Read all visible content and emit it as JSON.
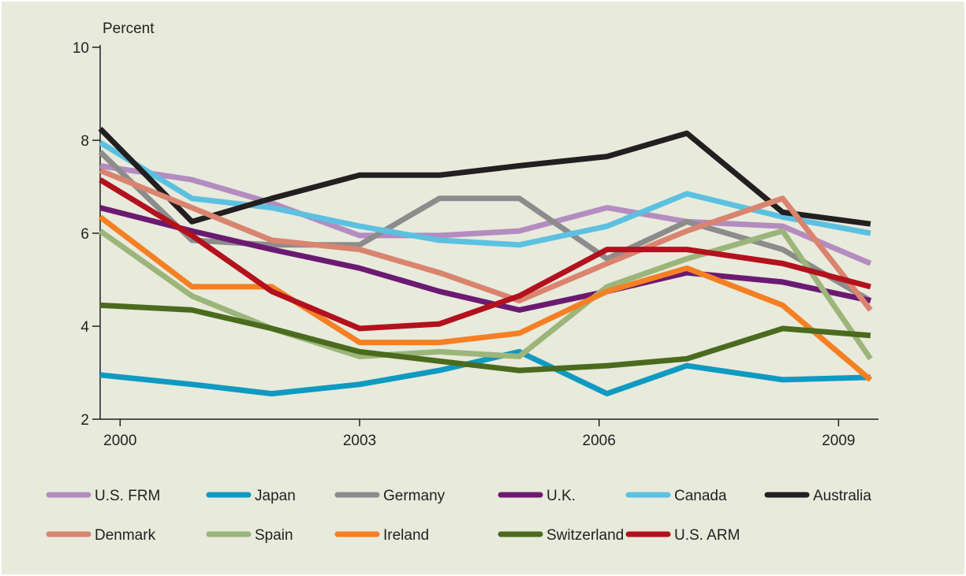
{
  "chart_data": {
    "type": "line",
    "title": "",
    "ylabel": "Percent",
    "xlabel": "",
    "ylim": [
      2,
      10
    ],
    "xlim": [
      1999.75,
      2009.5
    ],
    "y_ticks": [
      "10",
      "8",
      "6",
      "4",
      "2"
    ],
    "x_ticks": [
      "2000",
      "2003",
      "2006",
      "2009"
    ],
    "grid": false,
    "legend_position": "bottom",
    "x": [
      1999.75,
      2000.9,
      2001.9,
      2003.0,
      2004.0,
      2005.0,
      2006.1,
      2007.1,
      2008.3,
      2009.4
    ],
    "series": [
      {
        "name": "U.S. FRM",
        "color": "#b38cc0",
        "values": [
          7.45,
          7.15,
          6.65,
          5.95,
          5.95,
          6.05,
          6.55,
          6.25,
          6.15,
          5.35
        ]
      },
      {
        "name": "Japan",
        "color": "#0e9ac1",
        "values": [
          2.95,
          2.75,
          2.55,
          2.75,
          3.05,
          3.45,
          2.55,
          3.15,
          2.85,
          2.9
        ]
      },
      {
        "name": "Germany",
        "color": "#8c8c8c",
        "values": [
          7.75,
          5.85,
          5.75,
          5.75,
          6.75,
          6.75,
          5.45,
          6.25,
          5.65,
          4.55
        ]
      },
      {
        "name": "U.K.",
        "color": "#6b1a72",
        "values": [
          6.55,
          6.05,
          5.65,
          5.25,
          4.75,
          4.35,
          4.75,
          5.15,
          4.95,
          4.55
        ]
      },
      {
        "name": "Canada",
        "color": "#5cc1e0",
        "values": [
          7.95,
          6.75,
          6.55,
          6.15,
          5.85,
          5.75,
          6.15,
          6.85,
          6.35,
          6.0
        ]
      },
      {
        "name": "Australia",
        "color": "#231f20",
        "values": [
          8.25,
          6.25,
          6.75,
          7.25,
          7.25,
          7.45,
          7.65,
          8.15,
          6.45,
          6.2
        ]
      },
      {
        "name": "Denmark",
        "color": "#d9846f",
        "values": [
          7.35,
          6.55,
          5.85,
          5.65,
          5.15,
          4.55,
          5.35,
          6.05,
          6.75,
          4.35
        ]
      },
      {
        "name": "Spain",
        "color": "#9cb57a",
        "values": [
          6.05,
          4.65,
          3.95,
          3.35,
          3.45,
          3.35,
          4.85,
          5.45,
          6.05,
          3.3
        ]
      },
      {
        "name": "Ireland",
        "color": "#f58024",
        "values": [
          6.35,
          4.85,
          4.85,
          3.65,
          3.65,
          3.85,
          4.75,
          5.25,
          4.45,
          2.85
        ]
      },
      {
        "name": "Switzerland",
        "color": "#4a6b1e",
        "values": [
          4.45,
          4.35,
          3.95,
          3.45,
          3.25,
          3.05,
          3.15,
          3.3,
          3.95,
          3.8
        ]
      },
      {
        "name": "U.S. ARM",
        "color": "#b3111d",
        "values": [
          7.15,
          5.95,
          4.75,
          3.95,
          4.05,
          4.65,
          5.65,
          5.65,
          5.35,
          4.85
        ]
      }
    ]
  }
}
